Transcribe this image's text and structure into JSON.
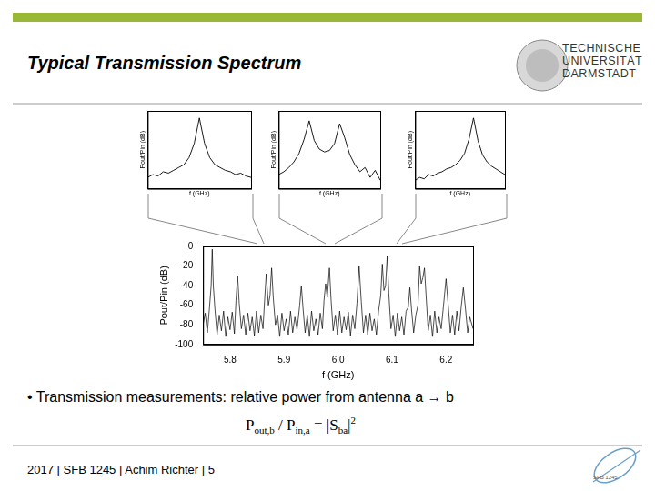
{
  "slide": {
    "title": "Typical Transmission Spectrum",
    "logo_text": [
      "TECHNISCHE",
      "UNIVERSITÄT",
      "DARMSTADT"
    ],
    "bullet": "• Transmission measurements: relative power from antenna a → b",
    "formula": [
      {
        "text": "P",
        "sub": "out,b"
      },
      {
        "text": " / P",
        "sub": "in,a"
      },
      {
        "text": " = |S",
        "sub": "ba"
      },
      {
        "text": "|",
        "sup": "2"
      }
    ],
    "footer": "2017 | SFB 1245 | Achim Richter | 5",
    "footer_logo": "SFB 1245"
  },
  "chart_data": [
    {
      "type": "line",
      "x_label": "f (GHz)",
      "y_label": "Pout/Pin (dB)",
      "grid": false,
      "color": "#000000",
      "xlim": [
        5.75,
        6.25
      ],
      "xticks": [
        5.8,
        5.9,
        {
          "value": 6,
          "label": "6.0"
        },
        6.1,
        6.2
      ],
      "ylim": [
        -100,
        0
      ],
      "yticks": [
        0,
        -20,
        -40,
        -60,
        -80,
        -100
      ],
      "x": [
        5.75,
        5.754,
        5.758,
        5.762,
        5.765,
        5.767,
        5.769,
        5.772,
        5.776,
        5.78,
        5.784,
        5.788,
        5.792,
        5.796,
        5.8,
        5.804,
        5.808,
        5.811,
        5.814,
        5.817,
        5.821,
        5.825,
        5.829,
        5.833,
        5.837,
        5.841,
        5.845,
        5.849,
        5.853,
        5.857,
        5.861,
        5.864,
        5.867,
        5.871,
        5.874,
        5.877,
        5.88,
        5.884,
        5.888,
        5.892,
        5.896,
        5.9,
        5.904,
        5.908,
        5.912,
        5.916,
        5.92,
        5.924,
        5.929,
        5.932,
        5.935,
        5.939,
        5.943,
        5.947,
        5.951,
        5.955,
        5.959,
        5.963,
        5.967,
        5.971,
        5.974,
        5.977,
        5.98,
        5.984,
        5.987,
        5.991,
        5.995,
        5.999,
        6.003,
        6.007,
        6.011,
        6.015,
        6.019,
        6.023,
        6.027,
        6.031,
        6.035,
        6.039,
        6.043,
        6.047,
        6.051,
        6.055,
        6.059,
        6.063,
        6.067,
        6.071,
        6.075,
        6.079,
        6.082,
        6.085,
        6.088,
        6.091,
        6.094,
        6.098,
        6.102,
        6.106,
        6.11,
        6.114,
        6.118,
        6.122,
        6.126,
        6.13,
        6.133,
        6.136,
        6.14,
        6.144,
        6.148,
        6.151,
        6.154,
        6.157,
        6.16,
        6.163,
        6.167,
        6.171,
        6.175,
        6.179,
        6.183,
        6.187,
        6.191,
        6.195,
        6.2,
        6.204,
        6.208,
        6.212,
        6.216,
        6.22,
        6.224,
        6.228,
        6.232,
        6.236,
        6.24,
        6.244,
        6.25
      ],
      "values": [
        -80,
        -68,
        -88,
        -62,
        -40,
        -3,
        -40,
        -64,
        -90,
        -70,
        -86,
        -66,
        -92,
        -72,
        -85,
        -67,
        -89,
        -55,
        -30,
        -58,
        -84,
        -70,
        -90,
        -68,
        -86,
        -72,
        -91,
        -66,
        -88,
        -70,
        -84,
        -55,
        -28,
        -60,
        -50,
        -22,
        -52,
        -80,
        -70,
        -92,
        -68,
        -86,
        -74,
        -90,
        -66,
        -88,
        -72,
        -85,
        -60,
        -40,
        -62,
        -88,
        -70,
        -92,
        -66,
        -86,
        -74,
        -90,
        -68,
        -84,
        -55,
        -38,
        -52,
        -22,
        -54,
        -86,
        -70,
        -90,
        -66,
        -88,
        -72,
        -85,
        -67,
        -91,
        -70,
        -84,
        -58,
        -20,
        -56,
        -88,
        -70,
        -90,
        -68,
        -86,
        -74,
        -90,
        -66,
        -50,
        -18,
        -45,
        -40,
        -10,
        -48,
        -84,
        -70,
        -92,
        -68,
        -86,
        -72,
        -90,
        -66,
        -62,
        -42,
        -64,
        -88,
        -70,
        -60,
        -20,
        -38,
        -32,
        -22,
        -50,
        -86,
        -70,
        -92,
        -66,
        -88,
        -72,
        -84,
        -62,
        -33,
        -60,
        -88,
        -70,
        -90,
        -66,
        -86,
        -62,
        -42,
        -64,
        -88,
        -72,
        -84
      ]
    },
    {
      "type": "line",
      "x_label": "f (GHz)",
      "y_label": "Pout/Pin (dB)",
      "tick_labels": false,
      "grid": false,
      "color": "#000000",
      "xlim": [
        0,
        20
      ],
      "ylim": [
        -50,
        5
      ],
      "x": [
        0,
        1,
        2,
        3,
        4,
        5,
        6,
        7,
        8,
        9,
        10,
        11,
        12,
        13,
        14,
        15,
        16,
        17,
        18,
        19,
        20
      ],
      "values": [
        -42,
        -40,
        -41,
        -38,
        -39,
        -37,
        -35,
        -33,
        -28,
        -18,
        0,
        -18,
        -28,
        -33,
        -35,
        -37,
        -38,
        -40,
        -39,
        -41,
        -42
      ]
    },
    {
      "type": "line",
      "x_label": "f (GHz)",
      "y_label": "Pout/Pin (dB)",
      "tick_labels": false,
      "grid": false,
      "color": "#000000",
      "xlim": [
        0,
        20
      ],
      "ylim": [
        -50,
        5
      ],
      "x": [
        0,
        1,
        2,
        3,
        4,
        5,
        6,
        7,
        8,
        9,
        10,
        11,
        12,
        13,
        14,
        15,
        16,
        17,
        18,
        19,
        20
      ],
      "values": [
        -40,
        -38,
        -35,
        -31,
        -25,
        -15,
        -2,
        -16,
        -22,
        -24,
        -23,
        -18,
        -4,
        -14,
        -26,
        -33,
        -38,
        -35,
        -42,
        -37,
        -44
      ]
    },
    {
      "type": "line",
      "x_label": "f (GHz)",
      "y_label": "Pout/Pin (dB)",
      "tick_labels": false,
      "grid": false,
      "color": "#000000",
      "xlim": [
        0,
        20
      ],
      "ylim": [
        -50,
        5
      ],
      "x": [
        0,
        1,
        2,
        3,
        4,
        5,
        6,
        7,
        8,
        9,
        10,
        11,
        12,
        13,
        14,
        15,
        16,
        17,
        18,
        19,
        20
      ],
      "values": [
        -44,
        -42,
        -43,
        -40,
        -41,
        -39,
        -38,
        -36,
        -35,
        -33,
        -30,
        -25,
        -15,
        0,
        -16,
        -26,
        -31,
        -34,
        -36,
        -38,
        -40
      ]
    }
  ]
}
